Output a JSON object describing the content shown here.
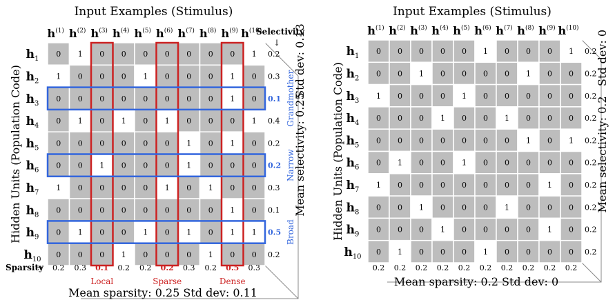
{
  "left": {
    "title": "Input Examples (Stimulus)",
    "y_label": "Hidden Units (Population Code)",
    "col_heads": [
      "h",
      "h",
      "h",
      "h",
      "h",
      "h",
      "h",
      "h",
      "h",
      "h"
    ],
    "col_sups": [
      "(1)",
      "(2)",
      "(3)",
      "(4)",
      "(5)",
      "(6)",
      "(7)",
      "(8)",
      "(9)",
      "(10)"
    ],
    "row_subs": [
      "1",
      "2",
      "3",
      "4",
      "5",
      "6",
      "7",
      "8",
      "9",
      "10"
    ],
    "matrix": [
      [
        0,
        1,
        0,
        0,
        0,
        0,
        0,
        0,
        0,
        1
      ],
      [
        1,
        0,
        0,
        0,
        1,
        0,
        0,
        0,
        1,
        0
      ],
      [
        0,
        0,
        0,
        0,
        0,
        0,
        0,
        0,
        1,
        0
      ],
      [
        0,
        1,
        0,
        1,
        0,
        1,
        0,
        0,
        0,
        1
      ],
      [
        0,
        0,
        0,
        0,
        0,
        0,
        1,
        0,
        1,
        0
      ],
      [
        0,
        0,
        1,
        0,
        0,
        0,
        1,
        0,
        0,
        0
      ],
      [
        1,
        0,
        0,
        0,
        0,
        1,
        0,
        1,
        0,
        0
      ],
      [
        0,
        0,
        0,
        0,
        0,
        0,
        0,
        0,
        1,
        0
      ],
      [
        0,
        1,
        0,
        0,
        1,
        0,
        1,
        0,
        1,
        1
      ],
      [
        0,
        0,
        0,
        1,
        0,
        0,
        0,
        1,
        0,
        0
      ]
    ],
    "selectivity_label": "Selectivity",
    "selectivity": [
      "0.2",
      "0.3",
      "0.1",
      "0.4",
      "0.2",
      "0.2",
      "0.3",
      "0.1",
      "0.5",
      "0.2"
    ],
    "sparsity_label": "Sparsity",
    "sparsity": [
      "0.2",
      "0.3",
      "0.1",
      "0.2",
      "0.2",
      "0.2",
      "0.3",
      "0.2",
      "0.5",
      "0.3"
    ],
    "col_tags": [
      "Local",
      "Sparse",
      "Dense"
    ],
    "row_tags": [
      "Grandmother",
      "Narrow",
      "Broad"
    ],
    "mean_selectivity": "Mean selectivity: 0.25",
    "std_selectivity": "Std dev: 0.13",
    "footer": "Mean sparsity: 0.25   Std dev: 0.11"
  },
  "right": {
    "title": "Input Examples (Stimulus)",
    "y_label": "Hidden Units (Population Code)",
    "col_heads": [
      "h",
      "h",
      "h",
      "h",
      "h",
      "h",
      "h",
      "h",
      "h",
      "h"
    ],
    "col_sups": [
      "(1)",
      "(2)",
      "(3)",
      "(4)",
      "(5)",
      "(6)",
      "(7)",
      "(8)",
      "(9)",
      "(10)"
    ],
    "row_subs": [
      "1",
      "2",
      "3",
      "4",
      "5",
      "6",
      "7",
      "8",
      "9",
      "10"
    ],
    "matrix": [
      [
        0,
        0,
        0,
        0,
        0,
        1,
        0,
        0,
        0,
        1
      ],
      [
        0,
        0,
        1,
        0,
        0,
        0,
        0,
        1,
        0,
        0
      ],
      [
        1,
        0,
        0,
        0,
        1,
        0,
        0,
        0,
        0,
        0
      ],
      [
        0,
        0,
        0,
        1,
        0,
        0,
        1,
        0,
        0,
        0
      ],
      [
        0,
        0,
        0,
        0,
        0,
        0,
        0,
        1,
        0,
        1
      ],
      [
        0,
        1,
        0,
        0,
        1,
        0,
        0,
        0,
        0,
        0
      ],
      [
        1,
        0,
        0,
        0,
        0,
        0,
        0,
        0,
        1,
        0
      ],
      [
        0,
        0,
        1,
        0,
        0,
        0,
        1,
        0,
        0,
        0
      ],
      [
        0,
        0,
        0,
        1,
        0,
        0,
        0,
        0,
        1,
        0
      ],
      [
        0,
        1,
        0,
        0,
        0,
        1,
        0,
        0,
        0,
        0
      ]
    ],
    "selectivity": [
      "0.2",
      "0.2",
      "0.2",
      "0.2",
      "0.2",
      "0.2",
      "0.2",
      "0.2",
      "0.2",
      "0.2"
    ],
    "sparsity": [
      "0.2",
      "0.2",
      "0.2",
      "0.2",
      "0.2",
      "0.2",
      "0.2",
      "0.2",
      "0.2",
      "0.2"
    ],
    "mean_selectivity": "Mean selectivity: 0.2",
    "std_selectivity": "Std dev: 0",
    "footer": "Mean sparsity: 0.2   Std dev: 0"
  },
  "colors": {
    "active_cell": "#ffffff",
    "inactive_cell": "#bdbdbd",
    "grid_line": "#ffffff",
    "header_bg": "#ffffff",
    "highlight_columns": "#cc2222",
    "highlight_rows": "#3366dd",
    "frame": "#888888"
  }
}
